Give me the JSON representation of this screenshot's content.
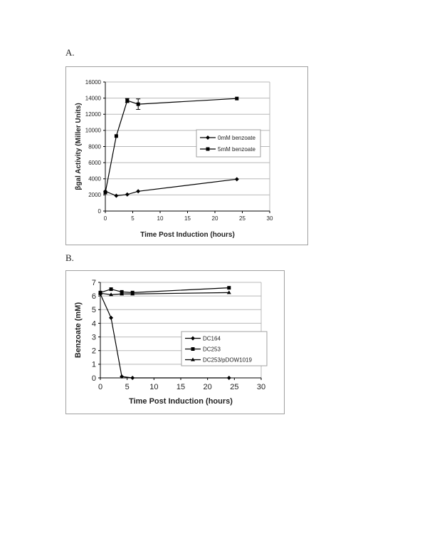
{
  "panels": [
    {
      "label": "A."
    },
    {
      "label": "B."
    }
  ],
  "chart_data": [
    {
      "type": "line",
      "title": "",
      "xlabel": "Time Post Induction (hours)",
      "ylabel": "βgal Activity (Miller Units)",
      "xlim": [
        0,
        30
      ],
      "ylim": [
        0,
        16000
      ],
      "xticks": [
        0,
        5,
        10,
        15,
        20,
        25,
        30
      ],
      "yticks": [
        0,
        2000,
        4000,
        6000,
        8000,
        10000,
        12000,
        14000,
        16000
      ],
      "grid": "horizontal",
      "legend_position": "center-right inside",
      "series": [
        {
          "name": "0mM benzoate",
          "marker": "diamond",
          "x": [
            0,
            2,
            4,
            6,
            24
          ],
          "values": [
            2450,
            1900,
            2050,
            2450,
            3950
          ]
        },
        {
          "name": "5mM benzoate",
          "marker": "square",
          "x": [
            0,
            2,
            4,
            6,
            24
          ],
          "values": [
            2300,
            9300,
            13700,
            13250,
            13950
          ],
          "error": [
            100,
            150,
            250,
            650,
            120
          ]
        }
      ]
    },
    {
      "type": "line",
      "title": "",
      "xlabel": "Time Post Induction (hours)",
      "ylabel": "Benzoate (mM)",
      "xlim": [
        0,
        30
      ],
      "ylim": [
        0,
        7
      ],
      "xticks": [
        0,
        5,
        10,
        15,
        20,
        25,
        30
      ],
      "yticks": [
        0,
        1,
        2,
        3,
        4,
        5,
        6,
        7
      ],
      "grid": "horizontal",
      "legend_position": "lower-right inside",
      "series": [
        {
          "name": "DC164",
          "marker": "diamond",
          "x": [
            0,
            2,
            4,
            6,
            24
          ],
          "values": [
            6.15,
            4.4,
            0.1,
            0.0,
            0.0
          ]
        },
        {
          "name": "DC253",
          "marker": "square",
          "x": [
            0,
            2,
            4,
            6,
            24
          ],
          "values": [
            6.25,
            6.5,
            6.3,
            6.25,
            6.6
          ]
        },
        {
          "name": "DC253/pDOW1019",
          "marker": "triangle",
          "x": [
            0,
            2,
            4,
            6,
            24
          ],
          "values": [
            6.2,
            6.1,
            6.15,
            6.15,
            6.25
          ]
        }
      ]
    }
  ]
}
